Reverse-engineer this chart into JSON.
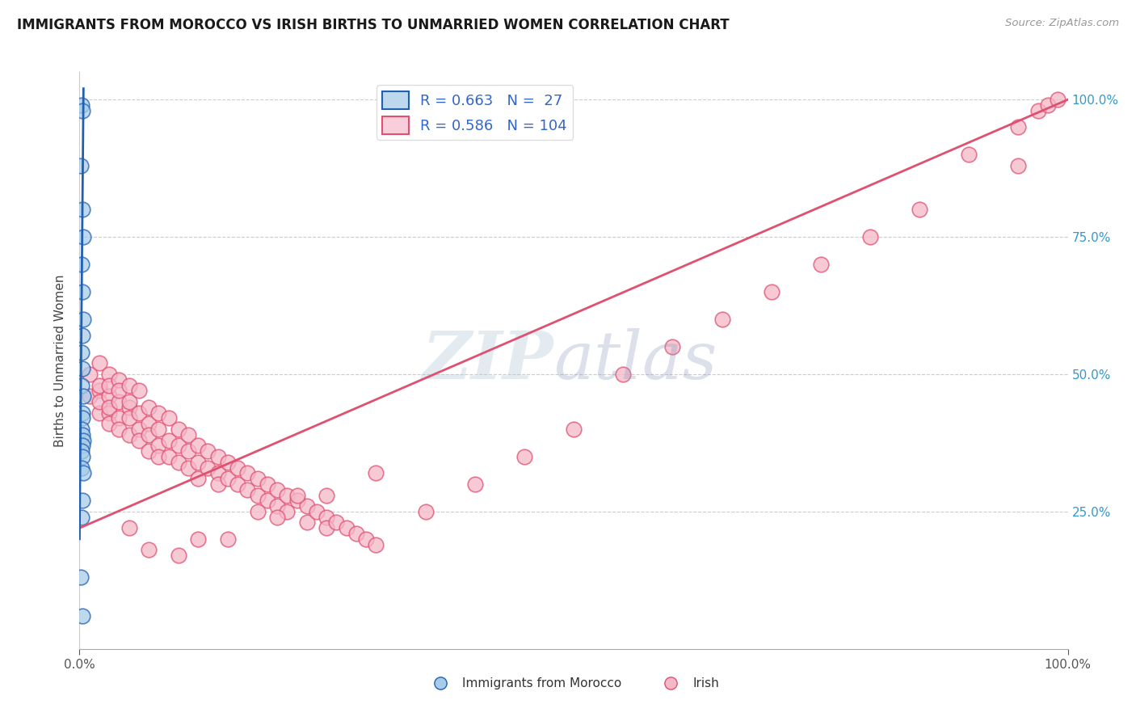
{
  "title": "IMMIGRANTS FROM MOROCCO VS IRISH BIRTHS TO UNMARRIED WOMEN CORRELATION CHART",
  "source": "Source: ZipAtlas.com",
  "ylabel": "Births to Unmarried Women",
  "legend1_label": "R = 0.663   N =  27",
  "legend2_label": "R = 0.586   N = 104",
  "series1_color": "#A8CCE8",
  "series2_color": "#F5B8C8",
  "trend1_color": "#2060B0",
  "trend2_color": "#E05070",
  "background_color": "#FFFFFF",
  "grid_color": "#CCCCCC",
  "series1_name": "Immigrants from Morocco",
  "series2_name": "Irish",
  "morocco_x": [
    0.002,
    0.003,
    0.001,
    0.003,
    0.004,
    0.002,
    0.003,
    0.004,
    0.003,
    0.002,
    0.003,
    0.002,
    0.004,
    0.003,
    0.003,
    0.002,
    0.003,
    0.004,
    0.003,
    0.002,
    0.003,
    0.002,
    0.004,
    0.003,
    0.002,
    0.001,
    0.003
  ],
  "morocco_y": [
    0.99,
    0.98,
    0.88,
    0.8,
    0.75,
    0.7,
    0.65,
    0.6,
    0.57,
    0.54,
    0.51,
    0.48,
    0.46,
    0.43,
    0.42,
    0.4,
    0.39,
    0.38,
    0.37,
    0.36,
    0.35,
    0.33,
    0.32,
    0.27,
    0.24,
    0.13,
    0.06
  ],
  "irish_x": [
    0.01,
    0.01,
    0.02,
    0.02,
    0.02,
    0.02,
    0.02,
    0.03,
    0.03,
    0.03,
    0.03,
    0.03,
    0.03,
    0.04,
    0.04,
    0.04,
    0.04,
    0.04,
    0.05,
    0.05,
    0.05,
    0.05,
    0.05,
    0.06,
    0.06,
    0.06,
    0.06,
    0.07,
    0.07,
    0.07,
    0.07,
    0.08,
    0.08,
    0.08,
    0.08,
    0.09,
    0.09,
    0.09,
    0.1,
    0.1,
    0.1,
    0.11,
    0.11,
    0.11,
    0.12,
    0.12,
    0.12,
    0.13,
    0.13,
    0.14,
    0.14,
    0.14,
    0.15,
    0.15,
    0.16,
    0.16,
    0.17,
    0.17,
    0.18,
    0.18,
    0.19,
    0.19,
    0.2,
    0.2,
    0.21,
    0.21,
    0.22,
    0.23,
    0.23,
    0.24,
    0.25,
    0.25,
    0.26,
    0.27,
    0.28,
    0.29,
    0.3,
    0.35,
    0.4,
    0.45,
    0.5,
    0.55,
    0.6,
    0.65,
    0.7,
    0.75,
    0.8,
    0.85,
    0.9,
    0.95,
    0.97,
    0.98,
    0.99,
    0.95,
    0.3,
    0.25,
    0.2,
    0.15,
    0.1,
    0.05,
    0.07,
    0.12,
    0.18,
    0.22
  ],
  "irish_y": [
    0.5,
    0.46,
    0.52,
    0.47,
    0.43,
    0.48,
    0.45,
    0.5,
    0.46,
    0.43,
    0.48,
    0.44,
    0.41,
    0.49,
    0.45,
    0.42,
    0.4,
    0.47,
    0.48,
    0.44,
    0.42,
    0.39,
    0.45,
    0.47,
    0.43,
    0.4,
    0.38,
    0.44,
    0.41,
    0.39,
    0.36,
    0.43,
    0.4,
    0.37,
    0.35,
    0.42,
    0.38,
    0.35,
    0.4,
    0.37,
    0.34,
    0.39,
    0.36,
    0.33,
    0.37,
    0.34,
    0.31,
    0.36,
    0.33,
    0.35,
    0.32,
    0.3,
    0.34,
    0.31,
    0.33,
    0.3,
    0.32,
    0.29,
    0.31,
    0.28,
    0.3,
    0.27,
    0.29,
    0.26,
    0.28,
    0.25,
    0.27,
    0.26,
    0.23,
    0.25,
    0.24,
    0.22,
    0.23,
    0.22,
    0.21,
    0.2,
    0.19,
    0.25,
    0.3,
    0.35,
    0.4,
    0.5,
    0.55,
    0.6,
    0.65,
    0.7,
    0.75,
    0.8,
    0.9,
    0.95,
    0.98,
    0.99,
    1.0,
    0.88,
    0.32,
    0.28,
    0.24,
    0.2,
    0.17,
    0.22,
    0.18,
    0.2,
    0.25,
    0.28
  ],
  "irish_trend_x0": 0.0,
  "irish_trend_y0": 0.22,
  "irish_trend_x1": 1.0,
  "irish_trend_y1": 1.0,
  "morocco_trend_x0": 0.0,
  "morocco_trend_y0": 0.2,
  "morocco_trend_x1": 0.004,
  "morocco_trend_y1": 1.02,
  "xlim": [
    0.0,
    1.0
  ],
  "ylim": [
    0.0,
    1.05
  ]
}
